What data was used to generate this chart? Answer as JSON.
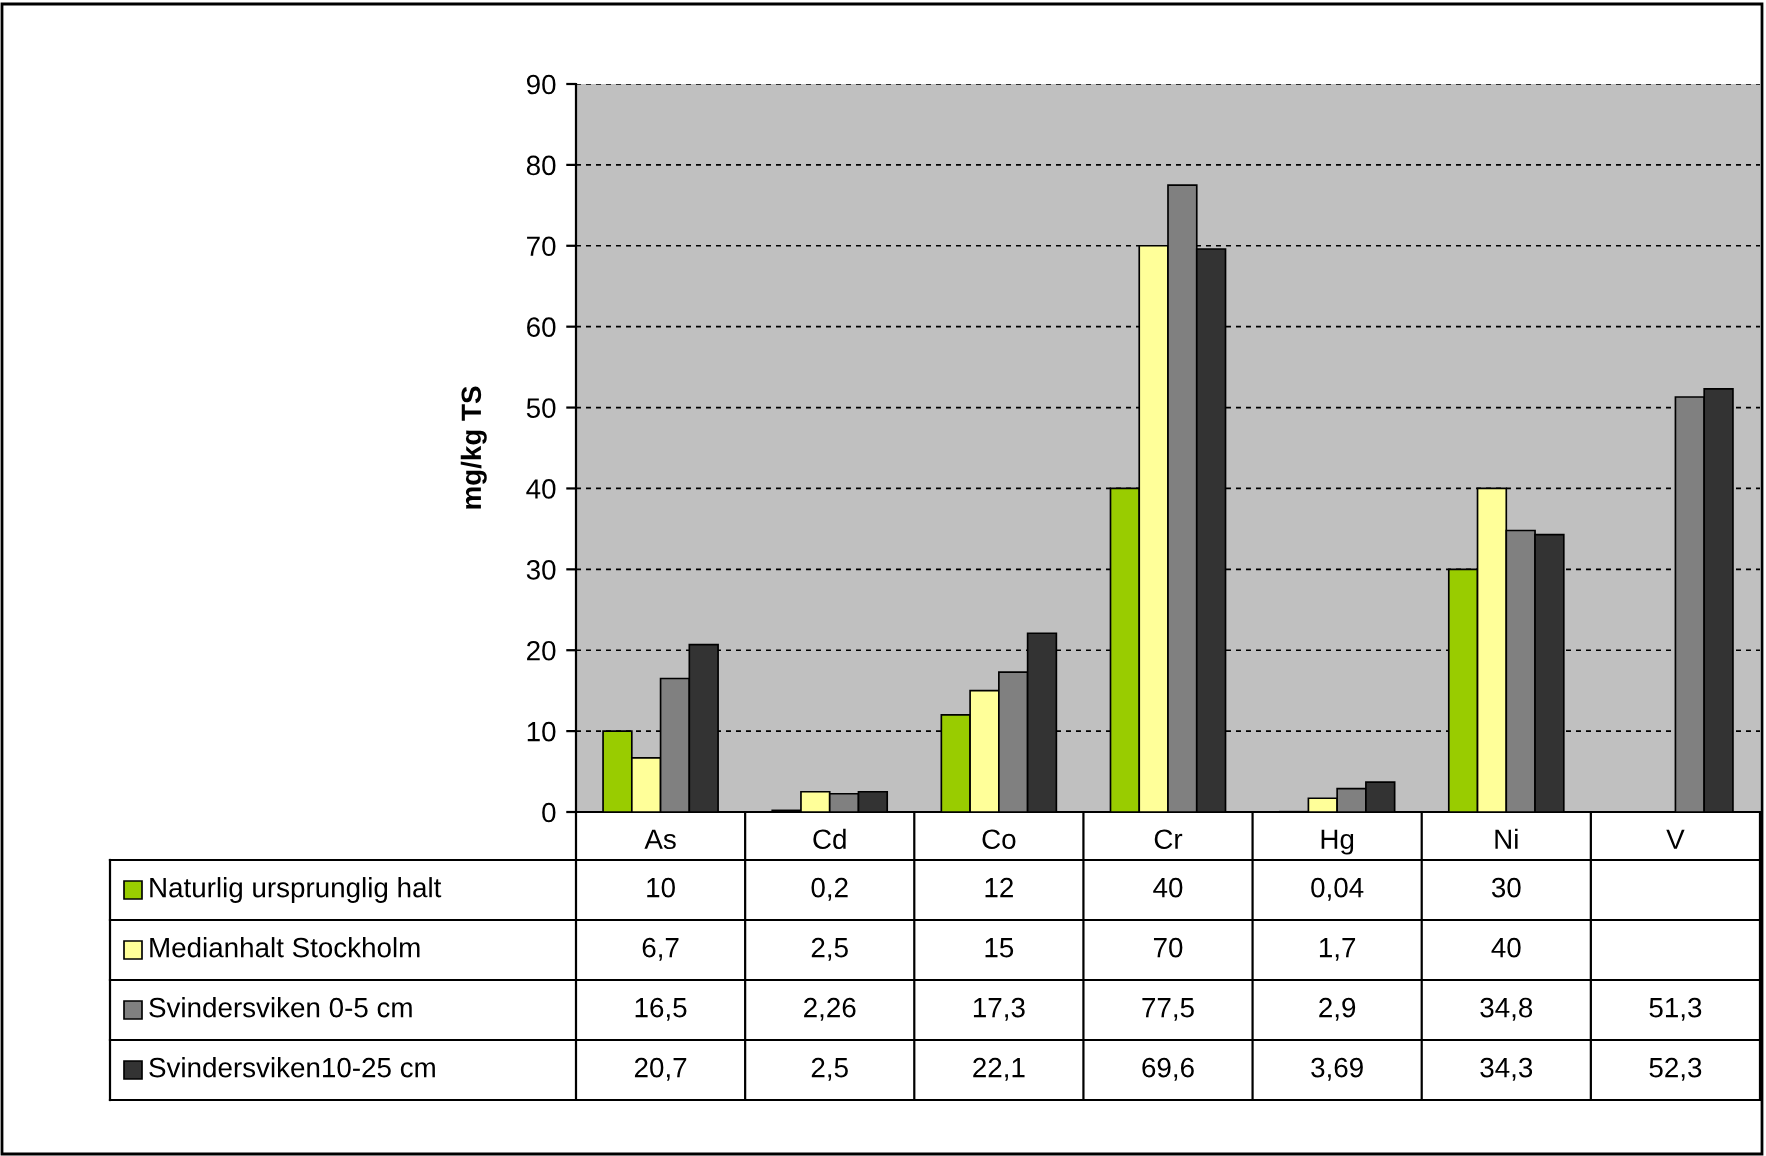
{
  "chart_data": {
    "type": "bar",
    "ylabel": "mg/kg TS",
    "categories": [
      "As",
      "Cd",
      "Co",
      "Cr",
      "Hg",
      "Ni",
      "V"
    ],
    "series": [
      {
        "name": "Naturlig ursprunglig halt",
        "color": "#99cc00",
        "values": [
          10,
          0.2,
          12,
          40,
          0.04,
          30,
          null
        ],
        "value_labels": [
          "10",
          "0,2",
          "12",
          "40",
          "0,04",
          "30",
          null
        ]
      },
      {
        "name": "Medianhalt Stockholm",
        "color": "#ffff99",
        "values": [
          6.7,
          2.5,
          15,
          70,
          1.7,
          40,
          null
        ],
        "value_labels": [
          "6,7",
          "2,5",
          "15",
          "70",
          "1,7",
          "40",
          null
        ]
      },
      {
        "name": "Svindersviken 0-5 cm",
        "color": "#808080",
        "values": [
          16.5,
          2.26,
          17.3,
          77.5,
          2.9,
          34.8,
          51.3
        ],
        "value_labels": [
          "16,5",
          "2,26",
          "17,3",
          "77,5",
          "2,9",
          "34,8",
          "51,3"
        ]
      },
      {
        "name": "Svindersviken10-25 cm",
        "color": "#333333",
        "values": [
          20.7,
          2.5,
          22.1,
          69.6,
          3.69,
          34.3,
          52.3
        ],
        "value_labels": [
          "20,7",
          "2,5",
          "22,1",
          "69,6",
          "3,69",
          "34,3",
          "52,3"
        ]
      }
    ],
    "ylim": [
      0,
      90
    ],
    "yticks": [
      0,
      10,
      20,
      30,
      40,
      50,
      60,
      70,
      80,
      90
    ],
    "grid": "y",
    "legend": "bottom"
  }
}
